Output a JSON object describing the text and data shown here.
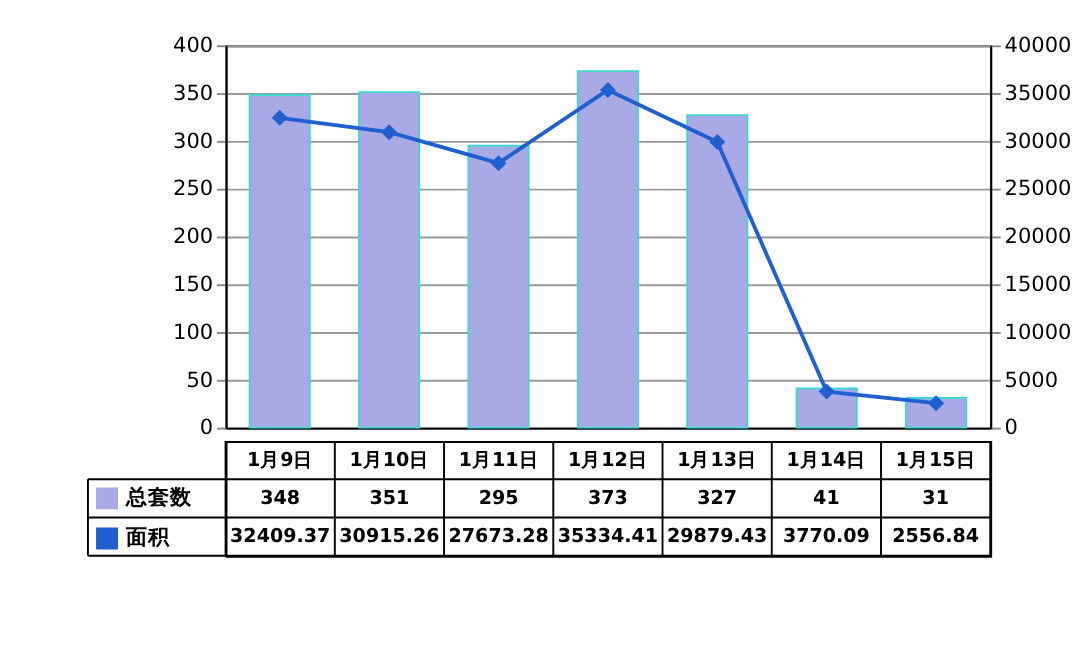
{
  "chart_data": {
    "type": "bar",
    "categories": [
      "1月9日",
      "1月10日",
      "1月11日",
      "1月12日",
      "1月13日",
      "1月14日",
      "1月15日"
    ],
    "series": [
      {
        "name": "总套数",
        "color": "#a9a9e6",
        "values": [
          348,
          351,
          295,
          373,
          327,
          41,
          31
        ]
      },
      {
        "name": "面积",
        "type": "line",
        "axis": "y2",
        "color": "#1f5fd0",
        "marker": "diamond",
        "values": [
          32409.37,
          30915.26,
          27673.28,
          35334.41,
          29879.43,
          3770.09,
          2556.84
        ]
      }
    ],
    "ylim": [
      0,
      400
    ],
    "yticks": [
      0,
      50,
      100,
      150,
      200,
      250,
      300,
      350,
      400
    ],
    "y2lim": [
      0,
      40000
    ],
    "y2ticks": [
      0,
      5000,
      10000,
      15000,
      20000,
      25000,
      30000,
      35000,
      40000
    ],
    "grid": "y",
    "legend": "bottom",
    "data_labels": true
  }
}
